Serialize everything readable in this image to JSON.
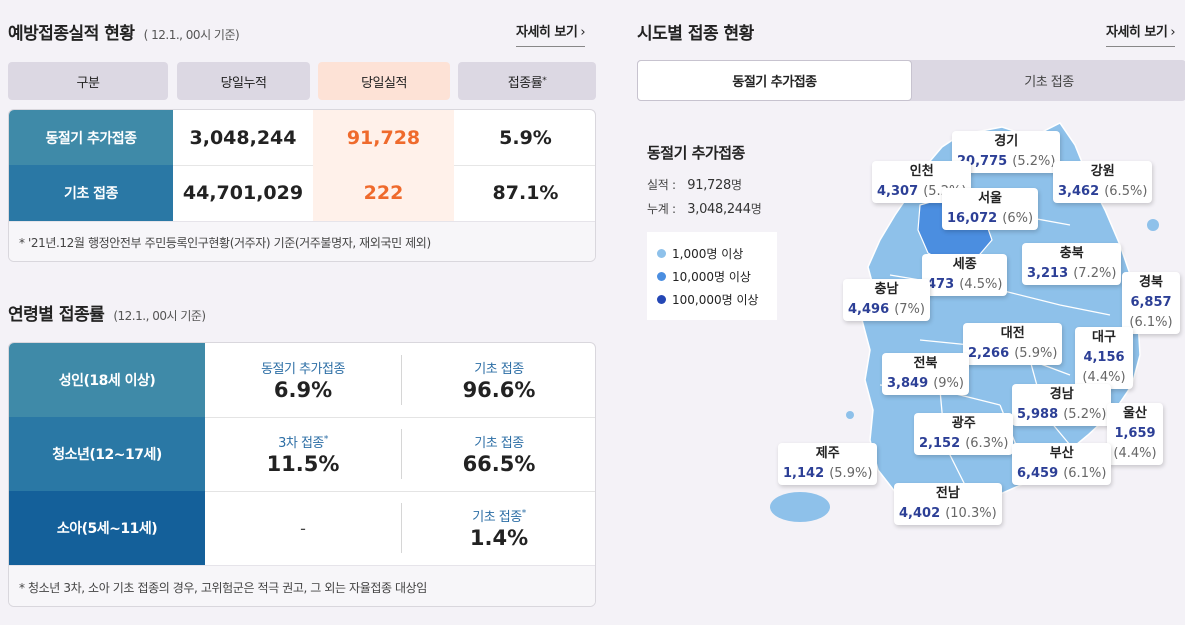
{
  "left": {
    "section1": {
      "title": "예방접종실적 현황",
      "sub": "( 12.1., 00시 기준)",
      "more": "자세히 보기",
      "headers": [
        "구분",
        "당일누적",
        "당일실적",
        "접종률"
      ],
      "header_sup": "*",
      "rows": [
        {
          "label": "동절기 추가접종",
          "cumulative": "3,048,244",
          "today": "91,728",
          "rate": "5.9%"
        },
        {
          "label": "기초 접종",
          "cumulative": "44,701,029",
          "today": "222",
          "rate": "87.1%"
        }
      ],
      "note": "* '21년.12월 행정안전부 주민등록인구현황(거주자) 기준(거주불명자, 재외국민 제외)"
    },
    "section2": {
      "title": "연령별 접종률",
      "sub": "(12.1., 00시 기준)",
      "rows": [
        {
          "label": "성인(18세 이상)",
          "c1_label": "동절기 추가접종",
          "c1_sup": "",
          "c1_value": "6.9%",
          "c2_label": "기초 접종",
          "c2_sup": "",
          "c2_value": "96.6%"
        },
        {
          "label": "청소년(12~17세)",
          "c1_label": "3차 접종",
          "c1_sup": "*",
          "c1_value": "11.5%",
          "c2_label": "기초 접종",
          "c2_sup": "",
          "c2_value": "66.5%"
        },
        {
          "label": "소아(5세~11세)",
          "c1_label": "",
          "c1_sup": "",
          "c1_value": "-",
          "c2_label": "기초 접종",
          "c2_sup": "*",
          "c2_value": "1.4%"
        }
      ],
      "note": "* 청소년 3차, 소아 기초 접종의 경우, 고위험군은 적극 권고, 그 외는 자율접종 대상임"
    }
  },
  "right": {
    "title": "시도별 접종 현황",
    "more": "자세히 보기",
    "tabs": [
      "동절기 추가접종",
      "기초 접종"
    ],
    "active_tab": 0,
    "summary": {
      "title": "동절기 추가접종",
      "perf_label": "실적 :",
      "perf_value": "91,728",
      "perf_unit": "명",
      "total_label": "누계 :",
      "total_value": "3,048,244",
      "total_unit": "명"
    },
    "legend": [
      {
        "label": "1,000명 이상",
        "color": "#8ec1ea"
      },
      {
        "label": "10,000명 이상",
        "color": "#4b8ee0"
      },
      {
        "label": "100,000명 이상",
        "color": "#2447b5"
      }
    ],
    "regions": [
      {
        "name": "경기",
        "value": "20,775",
        "pct": "(5.2%)"
      },
      {
        "name": "인천",
        "value": "4,307",
        "pct": "(5.2%)"
      },
      {
        "name": "강원",
        "value": "3,462",
        "pct": "(6.5%)"
      },
      {
        "name": "서울",
        "value": "16,072",
        "pct": "(6%)"
      },
      {
        "name": "충북",
        "value": "3,213",
        "pct": "(7.2%)"
      },
      {
        "name": "세종",
        "value": "473",
        "pct": "(4.5%)"
      },
      {
        "name": "충남",
        "value": "4,496",
        "pct": "(7%)"
      },
      {
        "name": "경북",
        "value": "6,857",
        "pct": "(6.1%)"
      },
      {
        "name": "대전",
        "value": "2,266",
        "pct": "(5.9%)"
      },
      {
        "name": "대구",
        "value": "4,156",
        "pct": "(4.4%)"
      },
      {
        "name": "전북",
        "value": "3,849",
        "pct": "(9%)"
      },
      {
        "name": "경남",
        "value": "5,988",
        "pct": "(5.2%)"
      },
      {
        "name": "울산",
        "value": "1,659",
        "pct": "(4.4%)"
      },
      {
        "name": "광주",
        "value": "2,152",
        "pct": "(6.3%)"
      },
      {
        "name": "제주",
        "value": "1,142",
        "pct": "(5.9%)"
      },
      {
        "name": "부산",
        "value": "6,459",
        "pct": "(6.1%)"
      },
      {
        "name": "전남",
        "value": "4,402",
        "pct": "(10.3%)"
      }
    ]
  },
  "colors": {
    "label_teal": "#3f8aa8",
    "label_mid": "#2a78a5",
    "label_dark": "#14609a",
    "accent_orange": "#ef6a2c",
    "map_light": "#8ec1ea",
    "map_mid": "#4b8ee0"
  },
  "icons": {
    "more": "chevron-right-icon"
  }
}
